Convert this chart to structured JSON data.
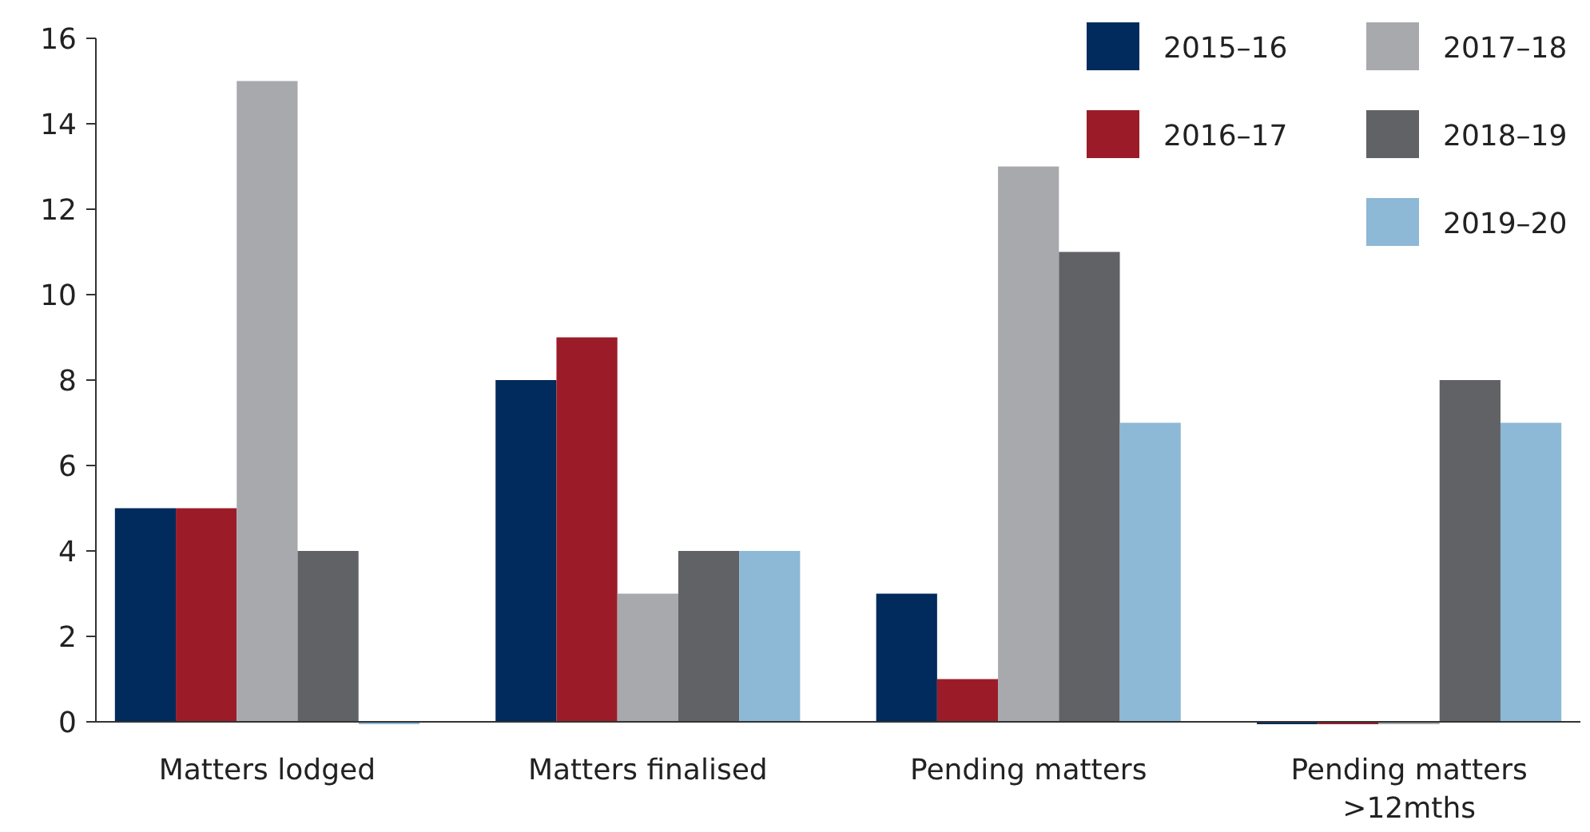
{
  "chart_data": {
    "type": "bar",
    "categories": [
      "Matters lodged",
      "Matters finalised",
      "Pending matters",
      "Pending matters >12mths"
    ],
    "series": [
      {
        "name": "2015–16",
        "color": "#002b5c",
        "values": [
          5,
          8,
          3,
          0
        ]
      },
      {
        "name": "2016–17",
        "color": "#9b1c28",
        "values": [
          5,
          9,
          1,
          0
        ]
      },
      {
        "name": "2017–18",
        "color": "#a7a9ad",
        "values": [
          15,
          3,
          13,
          0
        ]
      },
      {
        "name": "2018–19",
        "color": "#616265",
        "values": [
          4,
          4,
          11,
          8
        ]
      },
      {
        "name": "2019–20",
        "color": "#8db8d6",
        "values": [
          0,
          4,
          7,
          7
        ]
      }
    ],
    "ylim": [
      0,
      16
    ],
    "yticks": [
      0,
      2,
      4,
      6,
      8,
      10,
      12,
      14,
      16
    ],
    "grid": false,
    "legend": "top right"
  }
}
